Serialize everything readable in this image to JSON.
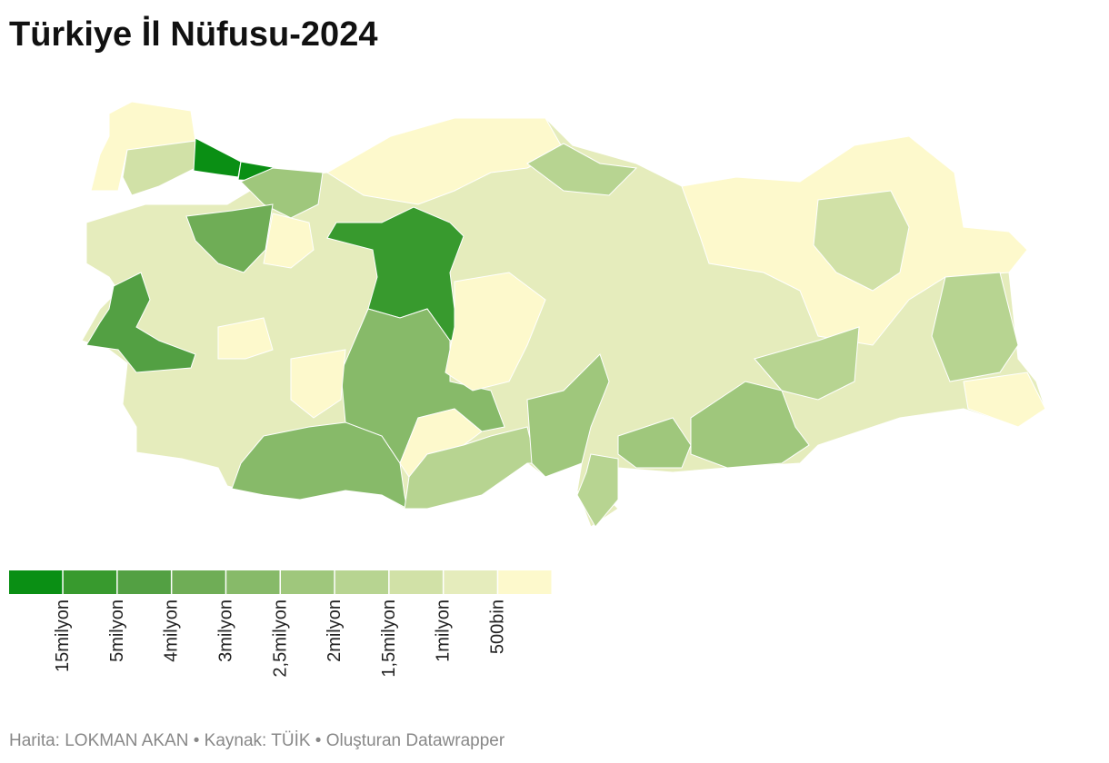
{
  "title": "Türkiye İl Nüfusu-2024",
  "legend": {
    "colors": [
      "#0a8f14",
      "#389a2e",
      "#53a043",
      "#6fad56",
      "#87ba69",
      "#9fc77c",
      "#b7d491",
      "#d1e1a7",
      "#e5ecbc",
      "#fdf9cc"
    ],
    "labels": [
      "15milyon",
      "5milyon",
      "4milyon",
      "3milyon",
      "2,5milyon",
      "2milyon",
      "1,5milyon",
      "1milyon",
      "500bin"
    ]
  },
  "footer": "Harita: LOKMAN AKAN • Kaynak: TÜİK • Oluşturan Datawrapper"
}
